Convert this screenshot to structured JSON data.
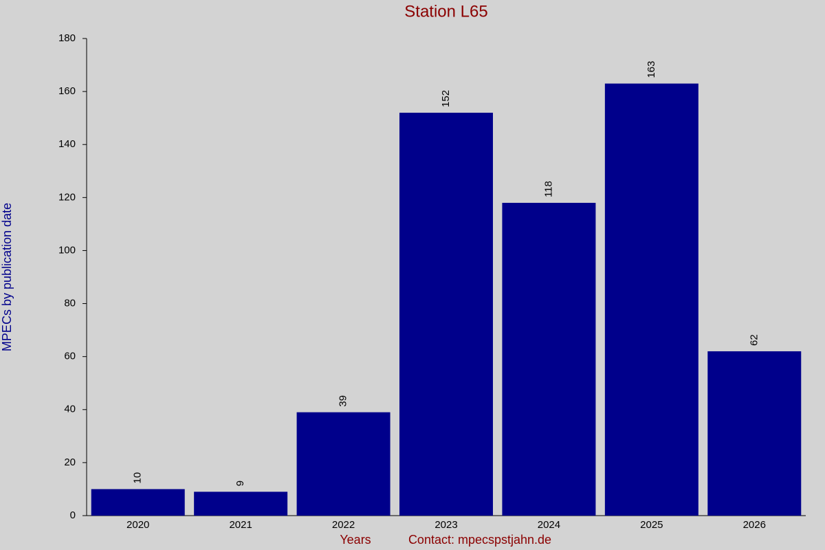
{
  "chart_data": {
    "type": "bar",
    "title": "Station L65",
    "y_label": "MPECs by publication date",
    "x_label": "Years",
    "note": "Contact: mpecspstjahn.de",
    "categories": [
      "2020",
      "2021",
      "2022",
      "2023",
      "2024",
      "2025",
      "2026"
    ],
    "values": [
      10,
      9,
      39,
      152,
      118,
      163,
      62
    ],
    "color": "#00008b",
    "ylim": [
      0,
      180
    ],
    "yticks": [
      0,
      20,
      40,
      60,
      80,
      100,
      120,
      140,
      160,
      180
    ],
    "grid": false
  }
}
